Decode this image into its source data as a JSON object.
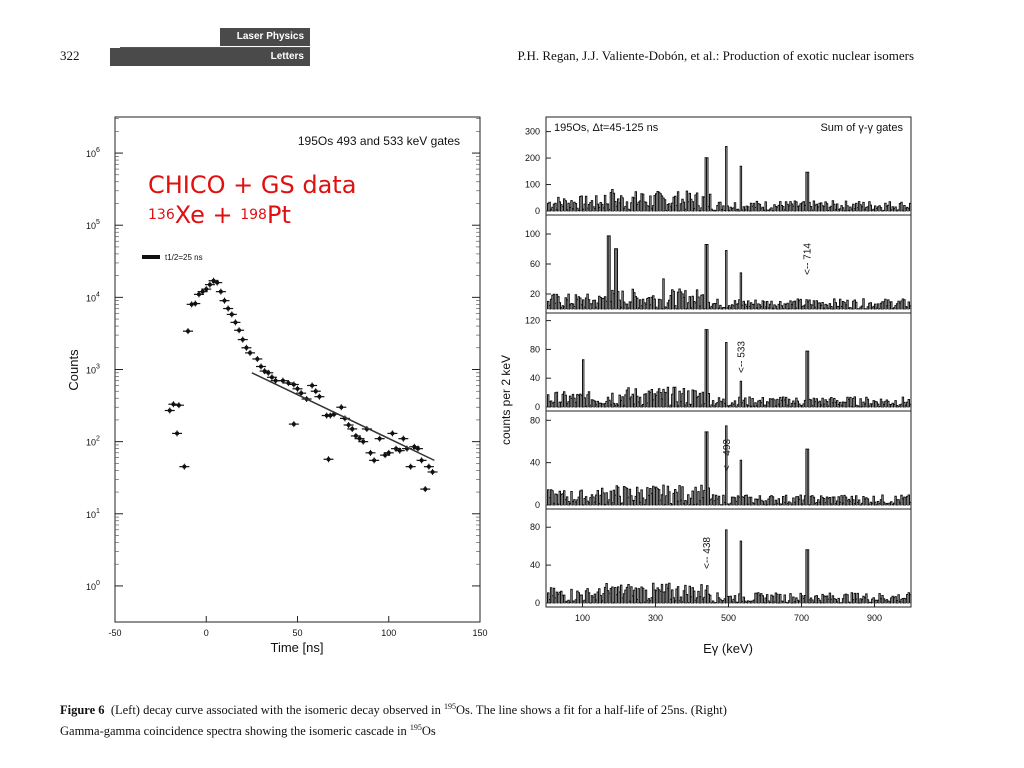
{
  "header": {
    "page_number": "322",
    "journal_line1": "Laser Physics",
    "journal_line2": "Letters",
    "running_head": "P.H. Regan, J.J. Valiente-Dobón, et al.: Production of exotic nuclear isomers"
  },
  "overlay": {
    "line1": "CHICO +  GS data",
    "mass1": "136",
    "elem1": "Xe + ",
    "mass2": "198",
    "elem2": "Pt"
  },
  "caption": {
    "label": "Figure 6",
    "text1": "(Left) decay curve associated with the isomeric decay observed in",
    "sup1": "195",
    "text2": "Os. The line shows a fit for a half-life of 25ns. (Right)",
    "text3": "Gamma-gamma coincidence spectra showing the isomeric cascade in",
    "sup2": "195",
    "text4": "Os"
  },
  "chart_data": [
    {
      "type": "scatter",
      "title": "195Os 493 and 533 keV gates",
      "xlabel": "Time [ns]",
      "ylabel": "Counts",
      "xlim": [
        -50,
        150
      ],
      "ylim_log10": [
        -0.5,
        6.5
      ],
      "yscale": "log",
      "xticks": [
        -50,
        0,
        50,
        100,
        150
      ],
      "yticks": [
        "10^0",
        "10^1",
        "10^2",
        "10^3",
        "10^4",
        "10^5",
        "10^6"
      ],
      "legend": "t1/2=25 ns",
      "points": [
        {
          "x": -20,
          "y": 270
        },
        {
          "x": -18,
          "y": 330
        },
        {
          "x": -15,
          "y": 320
        },
        {
          "x": -16,
          "y": 130
        },
        {
          "x": -12,
          "y": 45
        },
        {
          "x": -10,
          "y": 3400
        },
        {
          "x": -8,
          "y": 8000
        },
        {
          "x": -6,
          "y": 8200
        },
        {
          "x": -4,
          "y": 11000
        },
        {
          "x": -2,
          "y": 12000
        },
        {
          "x": 0,
          "y": 13000
        },
        {
          "x": 2,
          "y": 15000
        },
        {
          "x": 4,
          "y": 17000
        },
        {
          "x": 6,
          "y": 16000
        },
        {
          "x": 8,
          "y": 12000
        },
        {
          "x": 10,
          "y": 9000
        },
        {
          "x": 12,
          "y": 7000
        },
        {
          "x": 14,
          "y": 5800
        },
        {
          "x": 16,
          "y": 4500
        },
        {
          "x": 18,
          "y": 3500
        },
        {
          "x": 20,
          "y": 2600
        },
        {
          "x": 22,
          "y": 2000
        },
        {
          "x": 24,
          "y": 1700
        },
        {
          "x": 28,
          "y": 1400
        },
        {
          "x": 30,
          "y": 1100
        },
        {
          "x": 32,
          "y": 950
        },
        {
          "x": 34,
          "y": 900
        },
        {
          "x": 36,
          "y": 780
        },
        {
          "x": 38,
          "y": 700
        },
        {
          "x": 42,
          "y": 700
        },
        {
          "x": 45,
          "y": 650
        },
        {
          "x": 48,
          "y": 620
        },
        {
          "x": 50,
          "y": 540
        },
        {
          "x": 52,
          "y": 470
        },
        {
          "x": 55,
          "y": 390
        },
        {
          "x": 58,
          "y": 600
        },
        {
          "x": 60,
          "y": 500
        },
        {
          "x": 62,
          "y": 420
        },
        {
          "x": 48,
          "y": 175
        },
        {
          "x": 66,
          "y": 230
        },
        {
          "x": 68,
          "y": 230
        },
        {
          "x": 70,
          "y": 240
        },
        {
          "x": 74,
          "y": 300
        },
        {
          "x": 76,
          "y": 210
        },
        {
          "x": 78,
          "y": 170
        },
        {
          "x": 80,
          "y": 150
        },
        {
          "x": 82,
          "y": 120
        },
        {
          "x": 84,
          "y": 110
        },
        {
          "x": 86,
          "y": 100
        },
        {
          "x": 88,
          "y": 150
        },
        {
          "x": 90,
          "y": 70
        },
        {
          "x": 92,
          "y": 55
        },
        {
          "x": 95,
          "y": 110
        },
        {
          "x": 98,
          "y": 65
        },
        {
          "x": 100,
          "y": 70
        },
        {
          "x": 102,
          "y": 130
        },
        {
          "x": 104,
          "y": 80
        },
        {
          "x": 106,
          "y": 75
        },
        {
          "x": 108,
          "y": 110
        },
        {
          "x": 110,
          "y": 80
        },
        {
          "x": 112,
          "y": 45
        },
        {
          "x": 114,
          "y": 85
        },
        {
          "x": 116,
          "y": 80
        },
        {
          "x": 118,
          "y": 55
        },
        {
          "x": 120,
          "y": 22
        },
        {
          "x": 122,
          "y": 45
        },
        {
          "x": 124,
          "y": 38
        },
        {
          "x": 67,
          "y": 57
        }
      ],
      "fit_line": {
        "x": [
          25,
          125
        ],
        "y": [
          900,
          55
        ]
      }
    },
    {
      "type": "line",
      "xlabel": "Eγ (keV)",
      "ylabel": "counts per 2 keV",
      "xlim": [
        0,
        1000
      ],
      "xticks": [
        100,
        300,
        500,
        700,
        900
      ],
      "panels": [
        {
          "label": "195Os, Δt=45-125 ns",
          "label_right": "Sum of γ-γ gates",
          "ylim": [
            0,
            340
          ],
          "yticks": [
            0,
            100,
            200,
            300
          ],
          "annotation": ""
        },
        {
          "label": "",
          "label_right": "",
          "ylim": [
            0,
            120
          ],
          "yticks": [
            20,
            60,
            100
          ],
          "annotation": "<-- 714"
        },
        {
          "label": "",
          "label_right": "",
          "ylim": [
            0,
            125
          ],
          "yticks": [
            0,
            40,
            80,
            120
          ],
          "annotation": "<-- 533"
        },
        {
          "label": "",
          "label_right": "",
          "ylim": [
            0,
            85
          ],
          "yticks": [
            0,
            40,
            80
          ],
          "annotation": "<-- 493"
        },
        {
          "label": "",
          "label_right": "",
          "ylim": [
            0,
            95
          ],
          "yticks": [
            0,
            40,
            80
          ],
          "annotation": "<-- 438"
        }
      ],
      "peaks_keV": [
        438,
        493,
        533,
        714
      ]
    }
  ]
}
